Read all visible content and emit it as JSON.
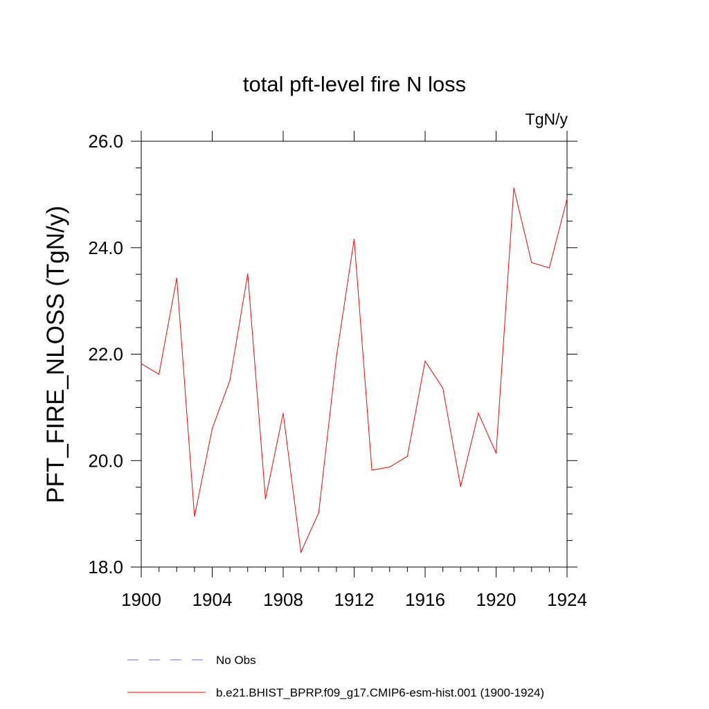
{
  "chart_data": {
    "type": "line",
    "title": "total pft-level fire N loss",
    "units_label": "TgN/y",
    "ylabel": "PFT_FIRE_NLOSS  (TgN/y)",
    "xlabel": "",
    "xlim": [
      1900,
      1924
    ],
    "ylim": [
      18.0,
      26.0
    ],
    "x_ticks": [
      "1900",
      "1904",
      "1908",
      "1912",
      "1916",
      "1920",
      "1924"
    ],
    "y_ticks": [
      "18.0",
      "20.0",
      "22.0",
      "24.0",
      "26.0"
    ],
    "grid": false,
    "legend_position": "bottom",
    "x": [
      1900,
      1901,
      1902,
      1903,
      1904,
      1905,
      1906,
      1907,
      1908,
      1909,
      1910,
      1911,
      1912,
      1913,
      1914,
      1915,
      1916,
      1917,
      1918,
      1919,
      1920,
      1921,
      1922,
      1923,
      1924
    ],
    "series": [
      {
        "name": "b.e21.BHIST_BPRP.f09_g17.CMIP6-esm-hist.001 (1900-1924)",
        "color": "#ff0000",
        "style": "solid",
        "values": [
          21.82,
          21.62,
          23.43,
          18.95,
          20.6,
          21.51,
          23.51,
          19.28,
          20.89,
          18.28,
          19.02,
          21.95,
          24.16,
          19.82,
          19.88,
          20.08,
          21.87,
          21.36,
          19.51,
          20.89,
          20.14,
          25.12,
          23.72,
          23.62,
          24.92
        ]
      }
    ],
    "legend": [
      {
        "label": "No Obs",
        "color": "#6b6bd6",
        "style": "dashed"
      },
      {
        "label": "b.e21.BHIST_BPRP.f09_g17.CMIP6-esm-hist.001 (1900-1924)",
        "color": "#ff0000",
        "style": "solid"
      }
    ]
  }
}
